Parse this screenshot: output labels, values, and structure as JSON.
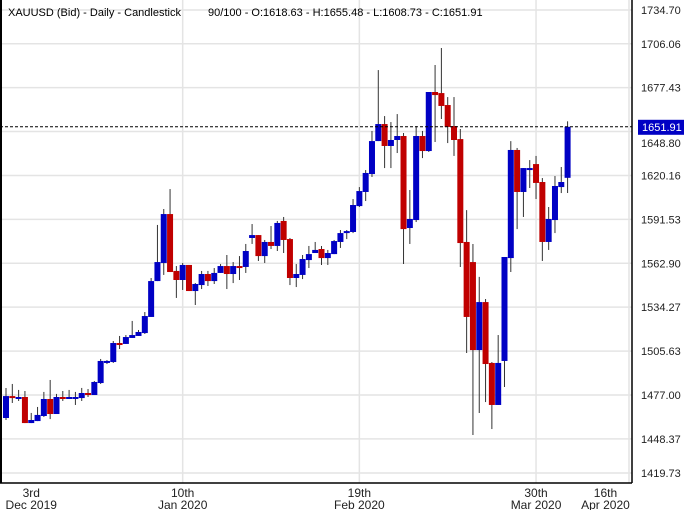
{
  "header": {
    "title": "XAUUSD (Bid) - Daily - Candlestick",
    "ohlc_readout": "90/100 - O:1618.63 - H:1655.48 - L:1608.73 - C:1651.91"
  },
  "colors": {
    "up": "#0000c4",
    "down": "#c00000",
    "wick": "#333333",
    "grid": "#e4e4e4",
    "price_label_bg": "#0000c4"
  },
  "chart_data": {
    "type": "candlestick",
    "title": "XAUUSD (Bid) - Daily - Candlestick",
    "ylim": [
      1419.73,
      1734.7
    ],
    "grid": true,
    "current_price": "1651.91",
    "y_ticks": [
      "1734.70",
      "1706.06",
      "1677.43",
      "1648.80",
      "1620.16",
      "1591.53",
      "1562.90",
      "1534.27",
      "1505.63",
      "1477.00",
      "1448.37",
      "1419.73"
    ],
    "x_ticks": [
      {
        "day": "3rd",
        "month": "Dec 2019",
        "bar": 5,
        "grid": false
      },
      {
        "day": "10th",
        "month": "Jan 2020",
        "bar": 29,
        "grid": true
      },
      {
        "day": "19th",
        "month": "Feb 2020",
        "bar": 57,
        "grid": true
      },
      {
        "day": "30th",
        "month": "Mar 2020",
        "bar": 85,
        "grid": true
      },
      {
        "day": "16th",
        "month": "Apr 2020",
        "bar": 96,
        "grid": false
      }
    ],
    "candles_ohlc": [
      [
        1462.0,
        1481.6,
        1460.7,
        1476.3
      ],
      [
        1476.3,
        1484.2,
        1471.8,
        1475.0
      ],
      [
        1474.4,
        1480.3,
        1473.1,
        1475.7
      ],
      [
        1475.7,
        1479.6,
        1458.7,
        1458.7
      ],
      [
        1458.7,
        1465.3,
        1458.7,
        1460.7
      ],
      [
        1460.0,
        1469.2,
        1460.0,
        1464.0
      ],
      [
        1463.3,
        1479.0,
        1462.7,
        1474.4
      ],
      [
        1474.4,
        1486.8,
        1461.3,
        1464.6
      ],
      [
        1464.6,
        1477.7,
        1464.6,
        1475.7
      ],
      [
        1475.7,
        1479.6,
        1473.1,
        1474.4
      ],
      [
        1474.4,
        1480.3,
        1474.4,
        1475.7
      ],
      [
        1474.4,
        1479.0,
        1470.5,
        1475.7
      ],
      [
        1475.0,
        1481.6,
        1473.1,
        1478.3
      ],
      [
        1478.3,
        1480.9,
        1475.7,
        1477.0
      ],
      [
        1477.0,
        1486.1,
        1477.0,
        1485.5
      ],
      [
        1484.8,
        1500.5,
        1484.2,
        1499.2
      ],
      [
        1497.9,
        1499.8,
        1497.2,
        1499.2
      ],
      [
        1498.5,
        1512.2,
        1497.9,
        1510.9
      ],
      [
        1510.9,
        1515.5,
        1507.0,
        1509.6
      ],
      [
        1510.3,
        1516.1,
        1510.3,
        1514.8
      ],
      [
        1514.2,
        1525.3,
        1514.2,
        1516.1
      ],
      [
        1515.5,
        1519.4,
        1515.5,
        1518.1
      ],
      [
        1517.4,
        1531.1,
        1516.8,
        1528.5
      ],
      [
        1527.9,
        1553.3,
        1527.9,
        1551.3
      ],
      [
        1551.3,
        1587.9,
        1551.3,
        1563.7
      ],
      [
        1563.1,
        1598.3,
        1555.3,
        1595.0
      ],
      [
        1595.0,
        1611.3,
        1557.2,
        1557.2
      ],
      [
        1557.9,
        1561.1,
        1540.3,
        1552.0
      ],
      [
        1552.0,
        1563.1,
        1545.5,
        1561.8
      ],
      [
        1561.8,
        1561.8,
        1544.8,
        1544.8
      ],
      [
        1544.8,
        1550.0,
        1535.7,
        1549.4
      ],
      [
        1548.7,
        1557.9,
        1546.1,
        1555.9
      ],
      [
        1555.9,
        1557.9,
        1548.1,
        1551.3
      ],
      [
        1551.3,
        1559.8,
        1549.4,
        1556.6
      ],
      [
        1556.6,
        1562.4,
        1556.6,
        1561.1
      ],
      [
        1561.1,
        1568.3,
        1546.1,
        1555.9
      ],
      [
        1555.9,
        1563.7,
        1550.0,
        1561.1
      ],
      [
        1561.1,
        1567.6,
        1552.0,
        1559.8
      ],
      [
        1560.5,
        1575.5,
        1556.6,
        1570.9
      ],
      [
        1579.4,
        1588.5,
        1575.5,
        1581.3
      ],
      [
        1581.3,
        1581.3,
        1564.4,
        1567.6
      ],
      [
        1567.6,
        1578.1,
        1563.1,
        1576.8
      ],
      [
        1576.8,
        1587.2,
        1572.2,
        1574.2
      ],
      [
        1574.2,
        1590.5,
        1570.9,
        1589.2
      ],
      [
        1590.5,
        1593.1,
        1569.6,
        1578.1
      ],
      [
        1578.7,
        1579.4,
        1548.7,
        1553.3
      ],
      [
        1553.3,
        1562.4,
        1547.4,
        1555.9
      ],
      [
        1555.3,
        1568.3,
        1552.6,
        1565.7
      ],
      [
        1565.0,
        1574.2,
        1559.8,
        1568.9
      ],
      [
        1569.6,
        1576.8,
        1569.6,
        1571.6
      ],
      [
        1572.2,
        1574.2,
        1561.8,
        1566.3
      ],
      [
        1566.3,
        1571.6,
        1561.8,
        1569.6
      ],
      [
        1568.9,
        1578.1,
        1568.9,
        1577.4
      ],
      [
        1576.8,
        1584.6,
        1572.9,
        1582.6
      ],
      [
        1582.6,
        1584.6,
        1578.7,
        1583.9
      ],
      [
        1583.3,
        1604.8,
        1582.6,
        1600.9
      ],
      [
        1600.2,
        1612.6,
        1599.6,
        1610.0
      ],
      [
        1609.4,
        1623.7,
        1603.5,
        1621.8
      ],
      [
        1621.1,
        1649.2,
        1619.2,
        1642.6
      ],
      [
        1642.6,
        1688.9,
        1642.6,
        1653.7
      ],
      [
        1653.7,
        1658.9,
        1625.0,
        1639.4
      ],
      [
        1639.4,
        1655.0,
        1625.0,
        1643.3
      ],
      [
        1643.3,
        1660.2,
        1634.8,
        1645.9
      ],
      [
        1645.9,
        1647.9,
        1562.4,
        1585.2
      ],
      [
        1585.9,
        1610.7,
        1575.5,
        1591.8
      ],
      [
        1591.1,
        1652.4,
        1589.8,
        1645.9
      ],
      [
        1645.9,
        1649.2,
        1631.5,
        1636.1
      ],
      [
        1636.1,
        1674.6,
        1635.5,
        1674.6
      ],
      [
        1674.6,
        1692.2,
        1642.0,
        1672.6
      ],
      [
        1673.9,
        1703.3,
        1657.0,
        1665.5
      ],
      [
        1666.1,
        1671.3,
        1641.3,
        1651.8
      ],
      [
        1652.4,
        1671.3,
        1632.9,
        1643.3
      ],
      [
        1643.9,
        1650.5,
        1560.5,
        1576.1
      ],
      [
        1576.8,
        1597.6,
        1504.4,
        1527.9
      ],
      [
        1563.7,
        1575.5,
        1450.9,
        1506.3
      ],
      [
        1506.3,
        1554.0,
        1465.3,
        1537.6
      ],
      [
        1537.6,
        1539.6,
        1472.4,
        1497.2
      ],
      [
        1497.9,
        1498.5,
        1454.8,
        1470.5
      ],
      [
        1470.5,
        1516.1,
        1470.5,
        1497.9
      ],
      [
        1499.2,
        1567.0,
        1482.2,
        1567.0
      ],
      [
        1566.3,
        1642.6,
        1557.2,
        1636.8
      ],
      [
        1636.8,
        1638.1,
        1585.2,
        1609.4
      ],
      [
        1609.4,
        1625.0,
        1593.1,
        1625.0
      ],
      [
        1623.7,
        1630.2,
        1612.0,
        1625.0
      ],
      [
        1627.6,
        1632.9,
        1604.8,
        1615.3
      ],
      [
        1615.9,
        1618.5,
        1564.4,
        1576.8
      ],
      [
        1576.8,
        1599.6,
        1571.6,
        1591.8
      ],
      [
        1591.1,
        1619.8,
        1582.6,
        1613.3
      ],
      [
        1612.6,
        1625.7,
        1608.7,
        1615.9
      ],
      [
        1618.63,
        1655.48,
        1608.73,
        1651.91
      ]
    ]
  }
}
